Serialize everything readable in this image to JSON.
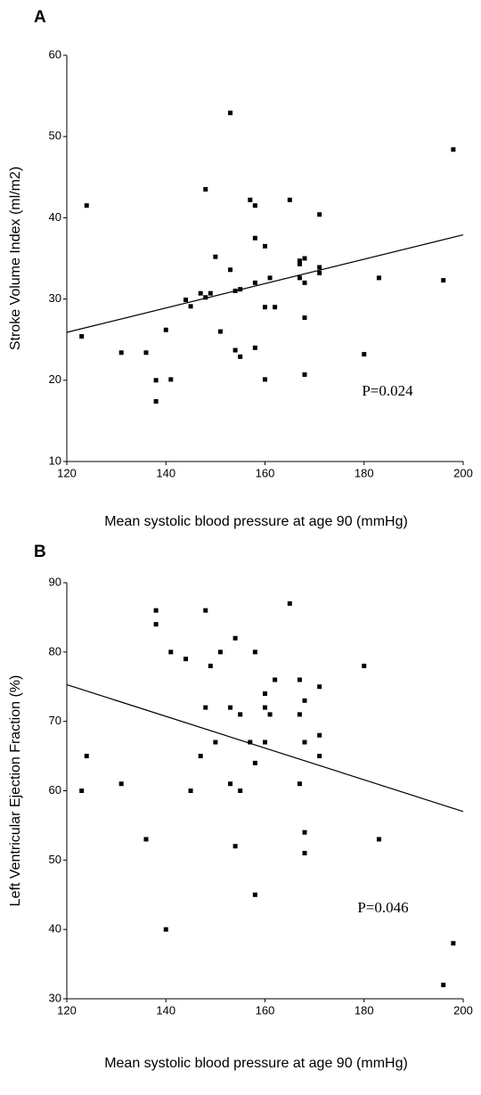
{
  "chart_data": [
    {
      "type": "scatter",
      "panel_label": "A",
      "y_label": "Stroke Volume Index (ml/m2)",
      "x_label": "Mean systolic blood pressure at age 90 (mmHg)",
      "annotation": "P=0.024",
      "xlim": [
        120,
        200
      ],
      "xticks": [
        120,
        140,
        160,
        180,
        200
      ],
      "ylim": [
        10,
        60
      ],
      "yticks": [
        10,
        20,
        30,
        40,
        50,
        60
      ],
      "color": "#000000",
      "x": [
        123,
        124,
        131,
        136,
        138,
        138,
        140,
        141,
        144,
        145,
        147,
        148,
        148,
        149,
        150,
        151,
        153,
        153,
        154,
        154,
        155,
        155,
        157,
        158,
        158,
        158,
        158,
        160,
        160,
        160,
        161,
        162,
        165,
        167,
        167,
        167,
        168,
        168,
        168,
        168,
        171,
        171,
        171,
        180,
        183,
        196,
        198
      ],
      "values": [
        25.4,
        41.5,
        23.4,
        23.4,
        20.0,
        17.4,
        26.2,
        20.1,
        29.9,
        29.1,
        30.7,
        30.2,
        43.5,
        30.7,
        35.2,
        26.0,
        33.6,
        52.9,
        23.7,
        31.0,
        31.2,
        22.9,
        42.2,
        41.5,
        37.5,
        32.0,
        24.0,
        36.5,
        29.0,
        20.1,
        32.6,
        29.0,
        42.2,
        34.3,
        34.7,
        32.6,
        35.0,
        32.0,
        27.7,
        20.7,
        40.4,
        33.9,
        33.2,
        23.2,
        32.6,
        32.3,
        48.4
      ],
      "trendline": {
        "x": [
          120,
          200
        ],
        "values": [
          25.9,
          37.9
        ]
      }
    },
    {
      "type": "scatter",
      "panel_label": "B",
      "y_label": "Left Ventricular Ejection Fraction (%)",
      "x_label": "Mean systolic blood pressure at age 90 (mmHg)",
      "annotation": "P=0.046",
      "xlim": [
        120,
        200
      ],
      "xticks": [
        120,
        140,
        160,
        180,
        200
      ],
      "ylim": [
        30,
        90
      ],
      "yticks": [
        30,
        40,
        50,
        60,
        70,
        80,
        90
      ],
      "color": "#000000",
      "x": [
        123,
        124,
        131,
        136,
        138,
        138,
        140,
        141,
        144,
        145,
        147,
        148,
        148,
        149,
        150,
        151,
        153,
        153,
        154,
        154,
        155,
        155,
        157,
        158,
        158,
        158,
        160,
        160,
        160,
        161,
        162,
        165,
        167,
        167,
        167,
        168,
        168,
        168,
        168,
        171,
        171,
        171,
        180,
        183,
        196,
        198
      ],
      "values": [
        60,
        65,
        61,
        53,
        86,
        84,
        40,
        80,
        79,
        60,
        65,
        86,
        72,
        78,
        67,
        80,
        72,
        61,
        82,
        52,
        71,
        60,
        67,
        80,
        64,
        45,
        74,
        72,
        67,
        71,
        76,
        87,
        76,
        71,
        61,
        73,
        67,
        54,
        51,
        75,
        68,
        65,
        78,
        53,
        32,
        38
      ],
      "trendline": {
        "x": [
          120,
          200
        ],
        "values": [
          75.3,
          57.0
        ]
      }
    }
  ]
}
